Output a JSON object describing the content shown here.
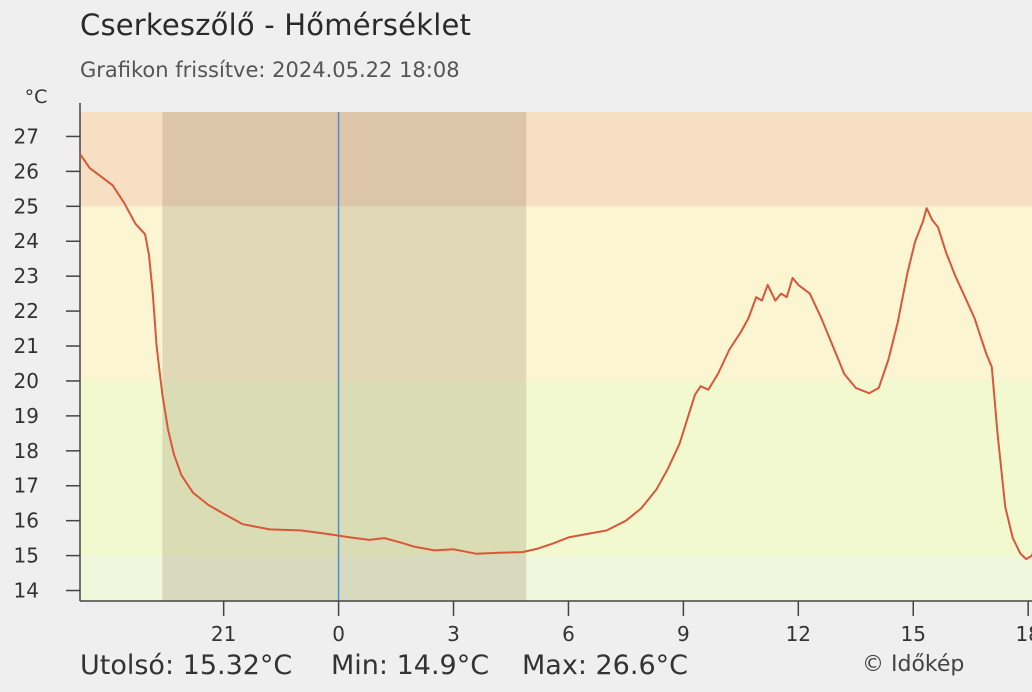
{
  "header": {
    "title": "Cserkeszőlő - Hőmérséklet",
    "subtitle": "Grafikon frissítve: 2024.05.22 18:08"
  },
  "footer": {
    "last": "Utolsó: 15.32°C",
    "min": "Min: 14.9°C",
    "max": "Max: 26.6°C",
    "copyright": "© Időkép"
  },
  "chart_data": {
    "type": "line",
    "ylabel": "°C",
    "ylim": [
      13.7,
      27.7
    ],
    "y_ticks": [
      14,
      15,
      16,
      17,
      18,
      19,
      20,
      21,
      22,
      23,
      24,
      25,
      26,
      27
    ],
    "x_range_hours": [
      -6.75,
      18.1
    ],
    "x_ticks": [
      {
        "h": -3,
        "label": "21"
      },
      {
        "h": 0,
        "label": "0"
      },
      {
        "h": 3,
        "label": "3"
      },
      {
        "h": 6,
        "label": "6"
      },
      {
        "h": 9,
        "label": "9"
      },
      {
        "h": 12,
        "label": "12"
      },
      {
        "h": 15,
        "label": "15"
      },
      {
        "h": 18,
        "label": "18"
      }
    ],
    "bands": [
      {
        "from": 13.7,
        "to": 15,
        "color": "#f0f7dc"
      },
      {
        "from": 15,
        "to": 20,
        "color": "#f3f9cf"
      },
      {
        "from": 20,
        "to": 25,
        "color": "#fbf5d2"
      },
      {
        "from": 25,
        "to": 27.7,
        "color": "#f6dfc3"
      }
    ],
    "night_shade": {
      "from_h": -4.6,
      "to_h": 4.9,
      "color": "rgba(90,70,40,0.16)"
    },
    "midnight_marker_h": 0,
    "line_color": "#d9573b",
    "series": [
      {
        "points": [
          [
            -6.75,
            26.5
          ],
          [
            -6.5,
            26.1
          ],
          [
            -6.2,
            25.85
          ],
          [
            -5.9,
            25.6
          ],
          [
            -5.6,
            25.1
          ],
          [
            -5.3,
            24.5
          ],
          [
            -5.05,
            24.2
          ],
          [
            -4.95,
            23.6
          ],
          [
            -4.85,
            22.5
          ],
          [
            -4.75,
            21.0
          ],
          [
            -4.6,
            19.6
          ],
          [
            -4.45,
            18.6
          ],
          [
            -4.3,
            17.9
          ],
          [
            -4.1,
            17.3
          ],
          [
            -3.8,
            16.8
          ],
          [
            -3.4,
            16.45
          ],
          [
            -3.0,
            16.2
          ],
          [
            -2.5,
            15.9
          ],
          [
            -1.8,
            15.75
          ],
          [
            -1.0,
            15.72
          ],
          [
            -0.3,
            15.62
          ],
          [
            0.3,
            15.52
          ],
          [
            0.8,
            15.45
          ],
          [
            1.2,
            15.5
          ],
          [
            1.6,
            15.38
          ],
          [
            2.0,
            15.25
          ],
          [
            2.5,
            15.15
          ],
          [
            3.0,
            15.18
          ],
          [
            3.6,
            15.05
          ],
          [
            4.2,
            15.08
          ],
          [
            4.8,
            15.1
          ],
          [
            5.2,
            15.2
          ],
          [
            5.6,
            15.35
          ],
          [
            6.0,
            15.52
          ],
          [
            6.5,
            15.62
          ],
          [
            7.0,
            15.72
          ],
          [
            7.5,
            16.0
          ],
          [
            7.9,
            16.35
          ],
          [
            8.3,
            16.9
          ],
          [
            8.6,
            17.5
          ],
          [
            8.9,
            18.2
          ],
          [
            9.1,
            18.9
          ],
          [
            9.3,
            19.6
          ],
          [
            9.45,
            19.85
          ],
          [
            9.65,
            19.75
          ],
          [
            9.9,
            20.2
          ],
          [
            10.2,
            20.9
          ],
          [
            10.5,
            21.4
          ],
          [
            10.7,
            21.8
          ],
          [
            10.9,
            22.4
          ],
          [
            11.05,
            22.3
          ],
          [
            11.2,
            22.75
          ],
          [
            11.4,
            22.3
          ],
          [
            11.55,
            22.5
          ],
          [
            11.7,
            22.4
          ],
          [
            11.85,
            22.95
          ],
          [
            12.0,
            22.75
          ],
          [
            12.3,
            22.5
          ],
          [
            12.6,
            21.8
          ],
          [
            12.9,
            21.0
          ],
          [
            13.2,
            20.2
          ],
          [
            13.5,
            19.8
          ],
          [
            13.85,
            19.65
          ],
          [
            14.1,
            19.8
          ],
          [
            14.35,
            20.6
          ],
          [
            14.6,
            21.7
          ],
          [
            14.85,
            23.1
          ],
          [
            15.05,
            24.0
          ],
          [
            15.25,
            24.55
          ],
          [
            15.35,
            24.95
          ],
          [
            15.5,
            24.6
          ],
          [
            15.65,
            24.4
          ],
          [
            15.85,
            23.7
          ],
          [
            16.1,
            23.0
          ],
          [
            16.35,
            22.4
          ],
          [
            16.6,
            21.8
          ],
          [
            16.9,
            20.8
          ],
          [
            17.05,
            20.4
          ],
          [
            17.2,
            18.5
          ],
          [
            17.4,
            16.4
          ],
          [
            17.6,
            15.5
          ],
          [
            17.8,
            15.05
          ],
          [
            17.95,
            14.9
          ],
          [
            18.1,
            15.0
          ],
          [
            18.2,
            15.32
          ]
        ]
      }
    ]
  }
}
